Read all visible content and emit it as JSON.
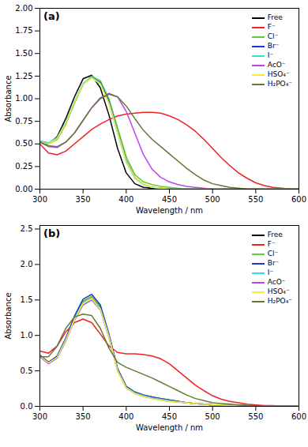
{
  "chart_data": [
    {
      "type": "line",
      "title": "(a)",
      "x_label": "Wavelength / nm",
      "y_label": "Absorbance",
      "legend": "top-right",
      "grid": false,
      "xlim": [
        300,
        600
      ],
      "xticks": [
        300,
        350,
        400,
        450,
        500,
        550,
        600
      ],
      "ylim": [
        0,
        2.0
      ],
      "yticks": [
        {
          "value": 0,
          "label": "0.00"
        },
        {
          "value": 0.25,
          "label": "0.25"
        },
        {
          "value": 0.5,
          "label": "0.50"
        },
        {
          "value": 0.75,
          "label": "0.75"
        },
        {
          "value": 1,
          "label": "1.00"
        },
        {
          "value": 1.25,
          "label": "1.25"
        },
        {
          "value": 1.5,
          "label": "1.50"
        },
        {
          "value": 1.75,
          "label": "1.75"
        },
        {
          "value": 2,
          "label": "2.00"
        }
      ],
      "x": [
        300,
        310,
        320,
        330,
        340,
        350,
        360,
        370,
        380,
        390,
        400,
        410,
        420,
        430,
        440,
        450,
        460,
        470,
        480,
        490,
        500,
        510,
        520,
        530,
        540,
        550,
        560,
        570,
        580,
        590,
        600
      ],
      "series": [
        {
          "name": "Free",
          "color": "#000000",
          "values": [
            0.52,
            0.5,
            0.58,
            0.78,
            1.02,
            1.22,
            1.26,
            1.12,
            0.82,
            0.45,
            0.18,
            0.06,
            0.02,
            0.01,
            0,
            0,
            0,
            0,
            0,
            0,
            0,
            0,
            0,
            0,
            0,
            0,
            0,
            0,
            0,
            0,
            0
          ]
        },
        {
          "name": "F⁻",
          "color": "#ee2222",
          "values": [
            0.5,
            0.4,
            0.38,
            0.42,
            0.5,
            0.58,
            0.66,
            0.72,
            0.77,
            0.81,
            0.83,
            0.84,
            0.85,
            0.85,
            0.84,
            0.81,
            0.77,
            0.71,
            0.64,
            0.55,
            0.45,
            0.35,
            0.26,
            0.18,
            0.12,
            0.07,
            0.04,
            0.02,
            0.01,
            0,
            0
          ]
        },
        {
          "name": "Cl⁻",
          "color": "#66cc33",
          "values": [
            0.52,
            0.5,
            0.55,
            0.72,
            0.95,
            1.16,
            1.25,
            1.2,
            1.0,
            0.68,
            0.36,
            0.16,
            0.08,
            0.05,
            0.03,
            0.02,
            0.01,
            0,
            0,
            0,
            0,
            0,
            0,
            0,
            0,
            0,
            0,
            0,
            0,
            0,
            0
          ]
        },
        {
          "name": "Br⁻",
          "color": "#2233cc",
          "values": [
            0.53,
            0.51,
            0.56,
            0.73,
            0.96,
            1.16,
            1.24,
            1.18,
            0.97,
            0.64,
            0.32,
            0.13,
            0.05,
            0.02,
            0.01,
            0,
            0,
            0,
            0,
            0,
            0,
            0,
            0,
            0,
            0,
            0,
            0,
            0,
            0,
            0,
            0
          ]
        },
        {
          "name": "I⁻",
          "color": "#33dddd",
          "values": [
            0.53,
            0.51,
            0.57,
            0.74,
            0.97,
            1.17,
            1.24,
            1.17,
            0.95,
            0.62,
            0.3,
            0.12,
            0.05,
            0.02,
            0.01,
            0,
            0,
            0,
            0,
            0,
            0,
            0,
            0,
            0,
            0,
            0,
            0,
            0,
            0,
            0,
            0
          ]
        },
        {
          "name": "AcO⁻",
          "color": "#bb44ee",
          "values": [
            0.52,
            0.47,
            0.46,
            0.52,
            0.62,
            0.76,
            0.9,
            1.01,
            1.06,
            1.02,
            0.86,
            0.62,
            0.38,
            0.22,
            0.13,
            0.08,
            0.05,
            0.03,
            0.02,
            0.01,
            0,
            0,
            0,
            0,
            0,
            0,
            0,
            0,
            0,
            0,
            0
          ]
        },
        {
          "name": "HSO₄⁻",
          "color": "#eeee33",
          "values": [
            0.52,
            0.5,
            0.56,
            0.73,
            0.96,
            1.16,
            1.23,
            1.16,
            0.95,
            0.63,
            0.31,
            0.13,
            0.05,
            0.02,
            0.01,
            0,
            0,
            0,
            0,
            0,
            0,
            0,
            0,
            0,
            0,
            0,
            0,
            0,
            0,
            0,
            0
          ]
        },
        {
          "name": "H₂PO₄⁻",
          "color": "#667733",
          "values": [
            0.52,
            0.48,
            0.47,
            0.52,
            0.62,
            0.76,
            0.9,
            1.0,
            1.05,
            1.02,
            0.92,
            0.78,
            0.65,
            0.55,
            0.47,
            0.39,
            0.31,
            0.23,
            0.16,
            0.1,
            0.06,
            0.04,
            0.02,
            0.01,
            0,
            0,
            0,
            0,
            0,
            0,
            0
          ]
        }
      ]
    },
    {
      "type": "line",
      "title": "(b)",
      "x_label": "Wavelength / nm",
      "y_label": "Absorbance",
      "legend": "top-right",
      "grid": false,
      "xlim": [
        300,
        600
      ],
      "xticks": [
        300,
        350,
        400,
        450,
        500,
        550,
        600
      ],
      "ylim": [
        0,
        2.55
      ],
      "yticks": [
        {
          "value": 0,
          "label": "0.0"
        },
        0.5,
        {
          "value": 1,
          "label": "1.0"
        },
        1.5,
        {
          "value": 2,
          "label": "2.0"
        },
        2.5
      ],
      "x": [
        300,
        310,
        320,
        330,
        340,
        350,
        360,
        370,
        380,
        390,
        400,
        410,
        420,
        430,
        440,
        450,
        460,
        470,
        480,
        490,
        500,
        510,
        520,
        530,
        540,
        550,
        560,
        570,
        580,
        590,
        600
      ],
      "series": [
        {
          "name": "Free",
          "color": "#000000",
          "values": [
            0.72,
            0.62,
            0.7,
            0.95,
            1.25,
            1.48,
            1.55,
            1.4,
            1.0,
            0.52,
            0.28,
            0.2,
            0.16,
            0.13,
            0.11,
            0.09,
            0.07,
            0.05,
            0.04,
            0.03,
            0.02,
            0.02,
            0.01,
            0.01,
            0.01,
            0,
            0,
            0,
            0,
            0,
            0
          ]
        },
        {
          "name": "F⁻",
          "color": "#ee2222",
          "values": [
            0.78,
            0.75,
            0.85,
            1.05,
            1.18,
            1.23,
            1.18,
            1.02,
            0.85,
            0.76,
            0.74,
            0.74,
            0.73,
            0.71,
            0.67,
            0.6,
            0.5,
            0.4,
            0.3,
            0.22,
            0.15,
            0.1,
            0.07,
            0.05,
            0.03,
            0.02,
            0.01,
            0.01,
            0,
            0,
            0
          ]
        },
        {
          "name": "Cl⁻",
          "color": "#66cc33",
          "values": [
            0.72,
            0.62,
            0.7,
            0.95,
            1.25,
            1.48,
            1.55,
            1.41,
            1.01,
            0.53,
            0.28,
            0.2,
            0.16,
            0.13,
            0.11,
            0.09,
            0.07,
            0.05,
            0.04,
            0.03,
            0.02,
            0.02,
            0.01,
            0.01,
            0.01,
            0,
            0,
            0,
            0,
            0,
            0
          ]
        },
        {
          "name": "Br⁻",
          "color": "#2233cc",
          "values": [
            0.72,
            0.62,
            0.71,
            0.96,
            1.27,
            1.51,
            1.58,
            1.43,
            1.02,
            0.53,
            0.28,
            0.2,
            0.16,
            0.13,
            0.11,
            0.09,
            0.07,
            0.05,
            0.04,
            0.03,
            0.02,
            0.02,
            0.01,
            0.01,
            0.01,
            0,
            0,
            0,
            0,
            0,
            0
          ]
        },
        {
          "name": "I⁻",
          "color": "#33dddd",
          "values": [
            0.71,
            0.61,
            0.69,
            0.94,
            1.23,
            1.46,
            1.53,
            1.38,
            0.99,
            0.51,
            0.27,
            0.19,
            0.15,
            0.12,
            0.1,
            0.08,
            0.06,
            0.05,
            0.04,
            0.03,
            0.02,
            0.02,
            0.01,
            0.01,
            0.01,
            0,
            0,
            0,
            0,
            0,
            0
          ]
        },
        {
          "name": "AcO⁻",
          "color": "#bb44ee",
          "values": [
            0.7,
            0.6,
            0.68,
            0.92,
            1.21,
            1.43,
            1.5,
            1.36,
            0.97,
            0.5,
            0.26,
            0.18,
            0.14,
            0.11,
            0.09,
            0.07,
            0.06,
            0.05,
            0.04,
            0.03,
            0.02,
            0.02,
            0.01,
            0.01,
            0.01,
            0,
            0,
            0,
            0,
            0,
            0
          ]
        },
        {
          "name": "HSO₄⁻",
          "color": "#eeee33",
          "values": [
            0.71,
            0.61,
            0.69,
            0.93,
            1.22,
            1.45,
            1.52,
            1.37,
            0.98,
            0.5,
            0.26,
            0.18,
            0.14,
            0.11,
            0.09,
            0.07,
            0.06,
            0.05,
            0.04,
            0.03,
            0.02,
            0.02,
            0.01,
            0.01,
            0.01,
            0,
            0,
            0,
            0,
            0,
            0
          ]
        },
        {
          "name": "H₂PO₄⁻",
          "color": "#667733",
          "values": [
            0.7,
            0.7,
            0.85,
            1.1,
            1.26,
            1.3,
            1.28,
            1.1,
            0.82,
            0.62,
            0.55,
            0.5,
            0.45,
            0.4,
            0.34,
            0.28,
            0.22,
            0.16,
            0.11,
            0.08,
            0.05,
            0.04,
            0.03,
            0.02,
            0.01,
            0.01,
            0,
            0,
            0,
            0,
            0
          ]
        }
      ]
    }
  ]
}
